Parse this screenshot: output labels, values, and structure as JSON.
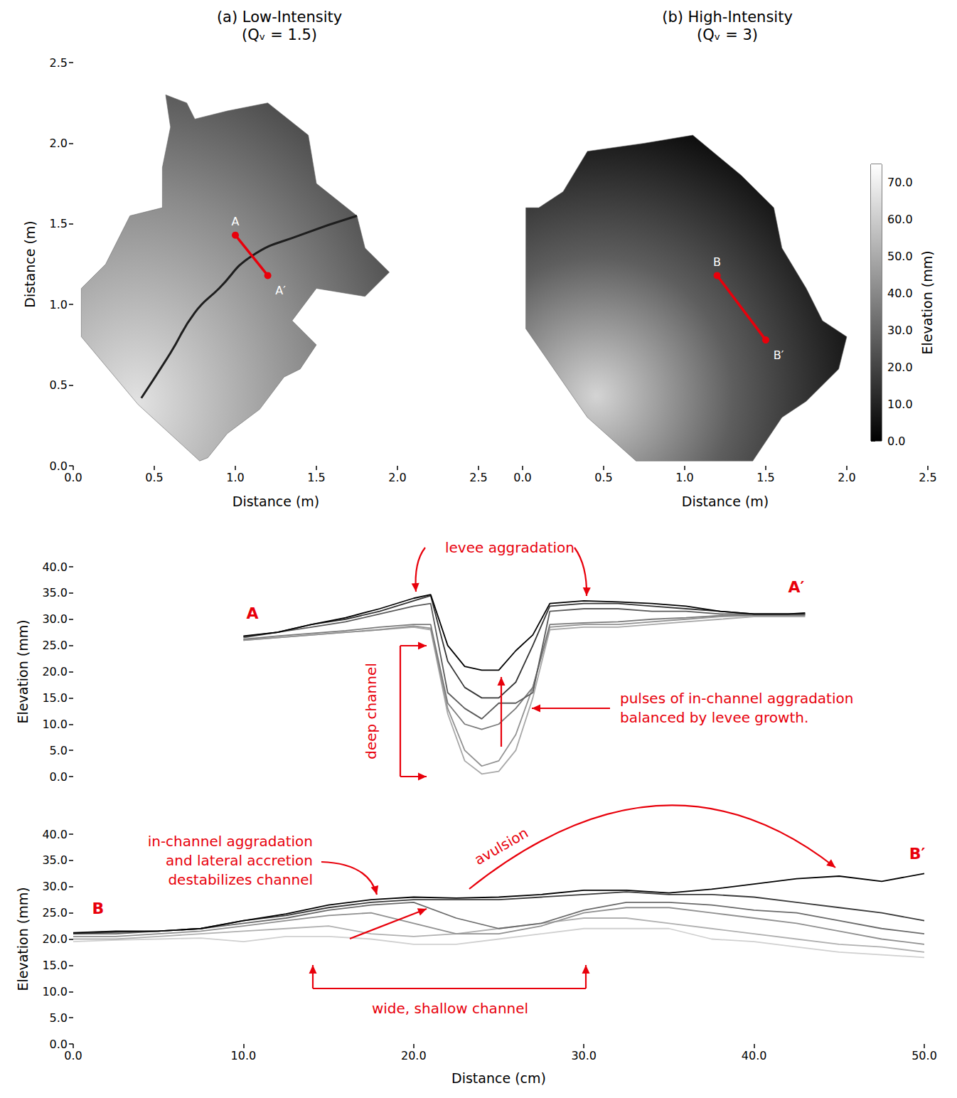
{
  "chart_data": [
    {
      "type": "map",
      "title": "(a) Low-Intensity",
      "subtitle": "(Qᵥ = 1.5)",
      "x_label": "Distance (m)",
      "y_label": "Distance (m)",
      "xlim": [
        0,
        2.5
      ],
      "ylim": [
        0,
        2.5
      ],
      "xticks": [
        {
          "value": 0,
          "label": "0.0"
        },
        0.5,
        {
          "value": 1,
          "label": "1.0"
        },
        1.5,
        {
          "value": 2,
          "label": "2.0"
        },
        2.5
      ],
      "yticks": [
        {
          "value": 0,
          "label": "0.0"
        },
        0.5,
        {
          "value": 1,
          "label": "1.0"
        },
        1.5,
        {
          "value": 2,
          "label": "2.0"
        },
        2.5
      ],
      "outline": {
        "x": [
          0.78,
          0.4,
          0.05,
          0.05,
          0.2,
          0.35,
          0.55,
          0.55,
          0.6,
          0.57,
          0.7,
          0.75,
          0.95,
          1.2,
          1.45,
          1.5,
          1.75,
          1.8,
          1.95,
          1.8,
          1.5,
          1.35,
          1.5,
          1.4,
          1.3,
          1.15,
          0.95,
          0.83
        ],
        "y": [
          0.03,
          0.38,
          0.8,
          1.1,
          1.25,
          1.55,
          1.6,
          1.85,
          2.1,
          2.3,
          2.25,
          2.15,
          2.2,
          2.25,
          2.05,
          1.75,
          1.55,
          1.35,
          1.2,
          1.05,
          1.1,
          0.9,
          0.75,
          0.6,
          0.55,
          0.35,
          0.2,
          0.05
        ]
      },
      "channel": {
        "x": [
          0.42,
          0.6,
          0.75,
          0.9,
          1.1,
          1.4,
          1.75
        ],
        "y": [
          0.42,
          0.7,
          0.95,
          1.1,
          1.3,
          1.43,
          1.55
        ]
      },
      "section": {
        "x": [
          1.0,
          1.2
        ],
        "y": [
          1.43,
          1.18
        ],
        "labels": [
          "A",
          "A′"
        ],
        "color": "#e8000b"
      }
    },
    {
      "type": "map",
      "title": "(b) High-Intensity",
      "subtitle": "(Qᵥ = 3)",
      "x_label": "Distance (m)",
      "tick_labels": "x",
      "xlim": [
        0,
        2.5
      ],
      "ylim": [
        0,
        2.5
      ],
      "xticks": [
        {
          "value": 0,
          "label": "0.0"
        },
        0.5,
        {
          "value": 1,
          "label": "1.0"
        },
        1.5,
        {
          "value": 2,
          "label": "2.0"
        },
        2.5
      ],
      "outline": {
        "x": [
          0.02,
          0.02,
          0.4,
          0.7,
          1.42,
          1.5,
          1.6,
          1.75,
          1.95,
          2.0,
          1.85,
          1.75,
          1.6,
          1.55,
          1.35,
          1.05,
          0.75,
          0.4,
          0.25,
          0.1
        ],
        "y": [
          1.6,
          0.85,
          0.3,
          0.03,
          0.03,
          0.15,
          0.3,
          0.4,
          0.6,
          0.8,
          0.9,
          1.1,
          1.35,
          1.6,
          1.8,
          2.05,
          2.0,
          1.95,
          1.7,
          1.6
        ]
      },
      "section": {
        "x": [
          1.2,
          1.5
        ],
        "y": [
          1.18,
          0.78
        ],
        "labels": [
          "B",
          "B′"
        ],
        "color": "#e8000b"
      },
      "colorbar": {
        "label": "Elevation (mm)",
        "range": [
          0,
          75
        ],
        "ticks": [
          {
            "value": 0,
            "label": "0.0"
          },
          {
            "value": 10,
            "label": "10.0"
          },
          {
            "value": 20,
            "label": "20.0"
          },
          {
            "value": 30,
            "label": "30.0"
          },
          {
            "value": 40,
            "label": "40.0"
          },
          {
            "value": 50,
            "label": "50.0"
          },
          {
            "value": 60,
            "label": "60.0"
          },
          {
            "value": 70,
            "label": "70.0"
          }
        ]
      }
    },
    {
      "type": "line",
      "y_label": "Elevation (mm)",
      "tick_labels": "y",
      "color": "#e8000b",
      "xlim": [
        0,
        50
      ],
      "ylim": [
        0,
        40
      ],
      "yticks": [
        {
          "value": 0,
          "label": "0.0"
        },
        {
          "value": 5,
          "label": "5.0"
        },
        {
          "value": 10,
          "label": "10.0"
        },
        {
          "value": 15,
          "label": "15.0"
        },
        {
          "value": 20,
          "label": "20.0"
        },
        {
          "value": 25,
          "label": "25.0"
        },
        {
          "value": 30,
          "label": "30.0"
        },
        {
          "value": 35,
          "label": "35.0"
        },
        {
          "value": 40,
          "label": "40.0"
        }
      ],
      "end_labels": [
        "A",
        "A′"
      ],
      "annotations": [
        "levee aggradation",
        "deep channel",
        "pulses of in-channel aggradation\nbalanced by levee growth."
      ],
      "x": [
        10,
        12,
        14,
        16,
        18,
        20,
        21,
        22,
        23,
        24,
        25,
        26,
        27,
        28,
        30,
        32,
        34,
        36,
        38,
        40,
        42,
        43
      ],
      "series": [
        {
          "color": "#a8a8a8",
          "values": [
            26,
            26.5,
            27,
            27.5,
            28,
            28.5,
            28,
            12,
            3,
            0.5,
            1,
            5,
            15,
            28,
            28.5,
            28.5,
            29,
            29.5,
            30,
            30.5,
            30.5,
            30.5
          ]
        },
        {
          "color": "#929292",
          "values": [
            26,
            26.5,
            27,
            27.5,
            28,
            28.7,
            28.3,
            13,
            5,
            2,
            3,
            8,
            17,
            28.5,
            29,
            29,
            29.5,
            30,
            30.5,
            30.7,
            30.7,
            30.7
          ]
        },
        {
          "color": "#7a7a7a",
          "values": [
            26.2,
            26.8,
            27.3,
            27.8,
            28.5,
            29,
            29,
            14,
            10,
            9,
            10,
            13,
            17,
            29,
            29.3,
            29.5,
            30,
            30.3,
            30.7,
            30.8,
            30.8,
            30.8
          ]
        },
        {
          "color": "#5a5a5a",
          "values": [
            26.5,
            27.5,
            28.5,
            29.5,
            31,
            32.5,
            33,
            16,
            13,
            11,
            14,
            14,
            16,
            31.5,
            32,
            32,
            31.5,
            31.5,
            31,
            31,
            31,
            31
          ]
        },
        {
          "color": "#353535",
          "values": [
            26.7,
            27.5,
            29,
            30,
            31.5,
            33.5,
            34.5,
            22,
            17,
            15,
            15,
            18,
            25,
            32.5,
            33,
            33,
            32.5,
            32,
            31.5,
            31,
            31,
            31
          ]
        },
        {
          "color": "#000000",
          "values": [
            26.8,
            27.5,
            29,
            30.3,
            32,
            34,
            34.7,
            25,
            21,
            20.3,
            20.3,
            24,
            27,
            33,
            33.5,
            33.3,
            33,
            32.5,
            31.5,
            31,
            31,
            31.2
          ]
        }
      ]
    },
    {
      "type": "line",
      "x_label": "Distance (cm)",
      "y_label": "Elevation (mm)",
      "color": "#e8000b",
      "xlim": [
        0,
        50
      ],
      "ylim": [
        0,
        40
      ],
      "xticks": [
        {
          "value": 0,
          "label": "0.0"
        },
        {
          "value": 10,
          "label": "10.0"
        },
        {
          "value": 20,
          "label": "20.0"
        },
        {
          "value": 30,
          "label": "30.0"
        },
        {
          "value": 40,
          "label": "40.0"
        },
        {
          "value": 50,
          "label": "50.0"
        }
      ],
      "yticks": [
        {
          "value": 0,
          "label": "0.0"
        },
        {
          "value": 5,
          "label": "5.0"
        },
        {
          "value": 10,
          "label": "10.0"
        },
        {
          "value": 15,
          "label": "15.0"
        },
        {
          "value": 20,
          "label": "20.0"
        },
        {
          "value": 25,
          "label": "25.0"
        },
        {
          "value": 30,
          "label": "30.0"
        },
        {
          "value": 35,
          "label": "35.0"
        },
        {
          "value": 40,
          "label": "40.0"
        }
      ],
      "end_labels": [
        "B",
        "B′"
      ],
      "annotations": [
        "in-channel aggradation\nand lateral accretion\ndestabilizes channel",
        "avulsion",
        "wide, shallow channel"
      ],
      "x": [
        0,
        2.5,
        5,
        7.5,
        10,
        12.5,
        15,
        17.5,
        20,
        22.5,
        25,
        27.5,
        30,
        32.5,
        35,
        37.5,
        40,
        42.5,
        45,
        47.5,
        50
      ],
      "series": [
        {
          "color": "#d0d0d0",
          "values": [
            19.5,
            19.8,
            20,
            20.2,
            19.5,
            20.5,
            20.5,
            20,
            19,
            19,
            20,
            21,
            22,
            22,
            22,
            20,
            19.5,
            18.5,
            17.5,
            17,
            16.5
          ]
        },
        {
          "color": "#b0b0b0",
          "values": [
            20,
            20,
            20.5,
            21,
            21.5,
            22,
            22.5,
            21,
            20.5,
            21,
            22,
            23,
            24,
            24,
            23,
            22,
            21,
            20,
            19,
            18.5,
            17.5
          ]
        },
        {
          "color": "#909090",
          "values": [
            20.5,
            20.5,
            21,
            21.5,
            22.5,
            23.5,
            24.5,
            25,
            23,
            21,
            21,
            22.5,
            25,
            26,
            26,
            25,
            24,
            23,
            21.5,
            20,
            19
          ]
        },
        {
          "color": "#6a6a6a",
          "values": [
            21,
            21,
            21.5,
            22,
            23,
            24,
            25.5,
            26.5,
            27,
            24,
            22,
            23,
            25.5,
            27,
            27,
            26.5,
            25.5,
            25,
            23.5,
            22,
            21
          ]
        },
        {
          "color": "#3a3a3a",
          "values": [
            21,
            21.3,
            21.5,
            22,
            23.5,
            24.5,
            26,
            27,
            27.5,
            27.5,
            27.5,
            28,
            28.5,
            29,
            28.5,
            28.5,
            28,
            27,
            26,
            25,
            23.5
          ]
        },
        {
          "color": "#000000",
          "values": [
            21.2,
            21.5,
            21.5,
            22,
            23.5,
            24.8,
            26.5,
            27.5,
            28,
            27.8,
            28,
            28.5,
            29.3,
            29.3,
            28.8,
            29.5,
            30.5,
            31.5,
            32,
            31,
            32.5
          ]
        }
      ]
    }
  ]
}
